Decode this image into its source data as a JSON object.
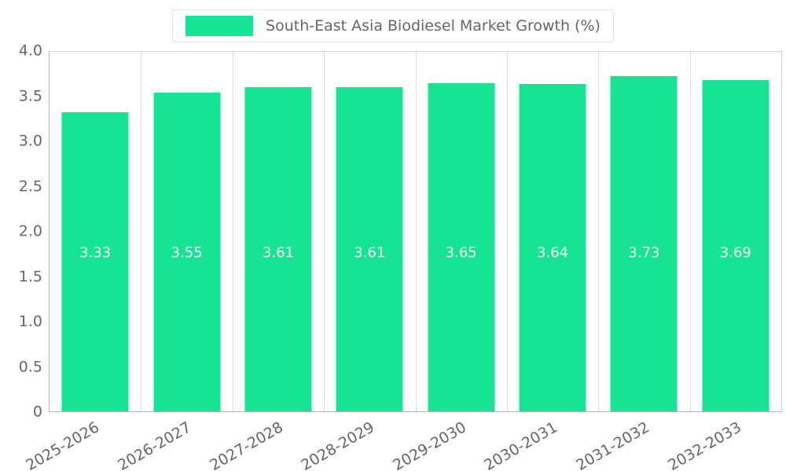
{
  "legend": {
    "label": "South-East Asia Biodiesel Market Growth (%)"
  },
  "chart_data": {
    "type": "bar",
    "title": "South-East Asia Biodiesel Market Growth (%)",
    "categories": [
      "2025-2026",
      "2026-2027",
      "2027-2028",
      "2028-2029",
      "2029-2030",
      "2030-2031",
      "2031-2032",
      "2032-2033"
    ],
    "values": [
      3.33,
      3.55,
      3.61,
      3.61,
      3.65,
      3.64,
      3.73,
      3.69
    ],
    "value_labels": [
      "3.33",
      "3.55",
      "3.61",
      "3.61",
      "3.65",
      "3.64",
      "3.73",
      "3.69"
    ],
    "xlabel": "",
    "ylabel": "",
    "ylim": [
      0,
      4.0
    ],
    "y_ticks": [
      "4.0",
      "3.5",
      "3.0",
      "2.5",
      "2.0",
      "1.5",
      "1.0",
      "0.5",
      "0"
    ],
    "y_tick_values": [
      4.0,
      3.5,
      3.0,
      2.5,
      2.0,
      1.5,
      1.0,
      0.5,
      0
    ],
    "grid": "vertical-only",
    "legend_position": "top-center",
    "colors": {
      "bar": "#17E394",
      "axis_text": "#666666",
      "gridline": "#DDDDDD",
      "value_label": "#FFFFFF",
      "background": "#FFFFFF"
    }
  }
}
